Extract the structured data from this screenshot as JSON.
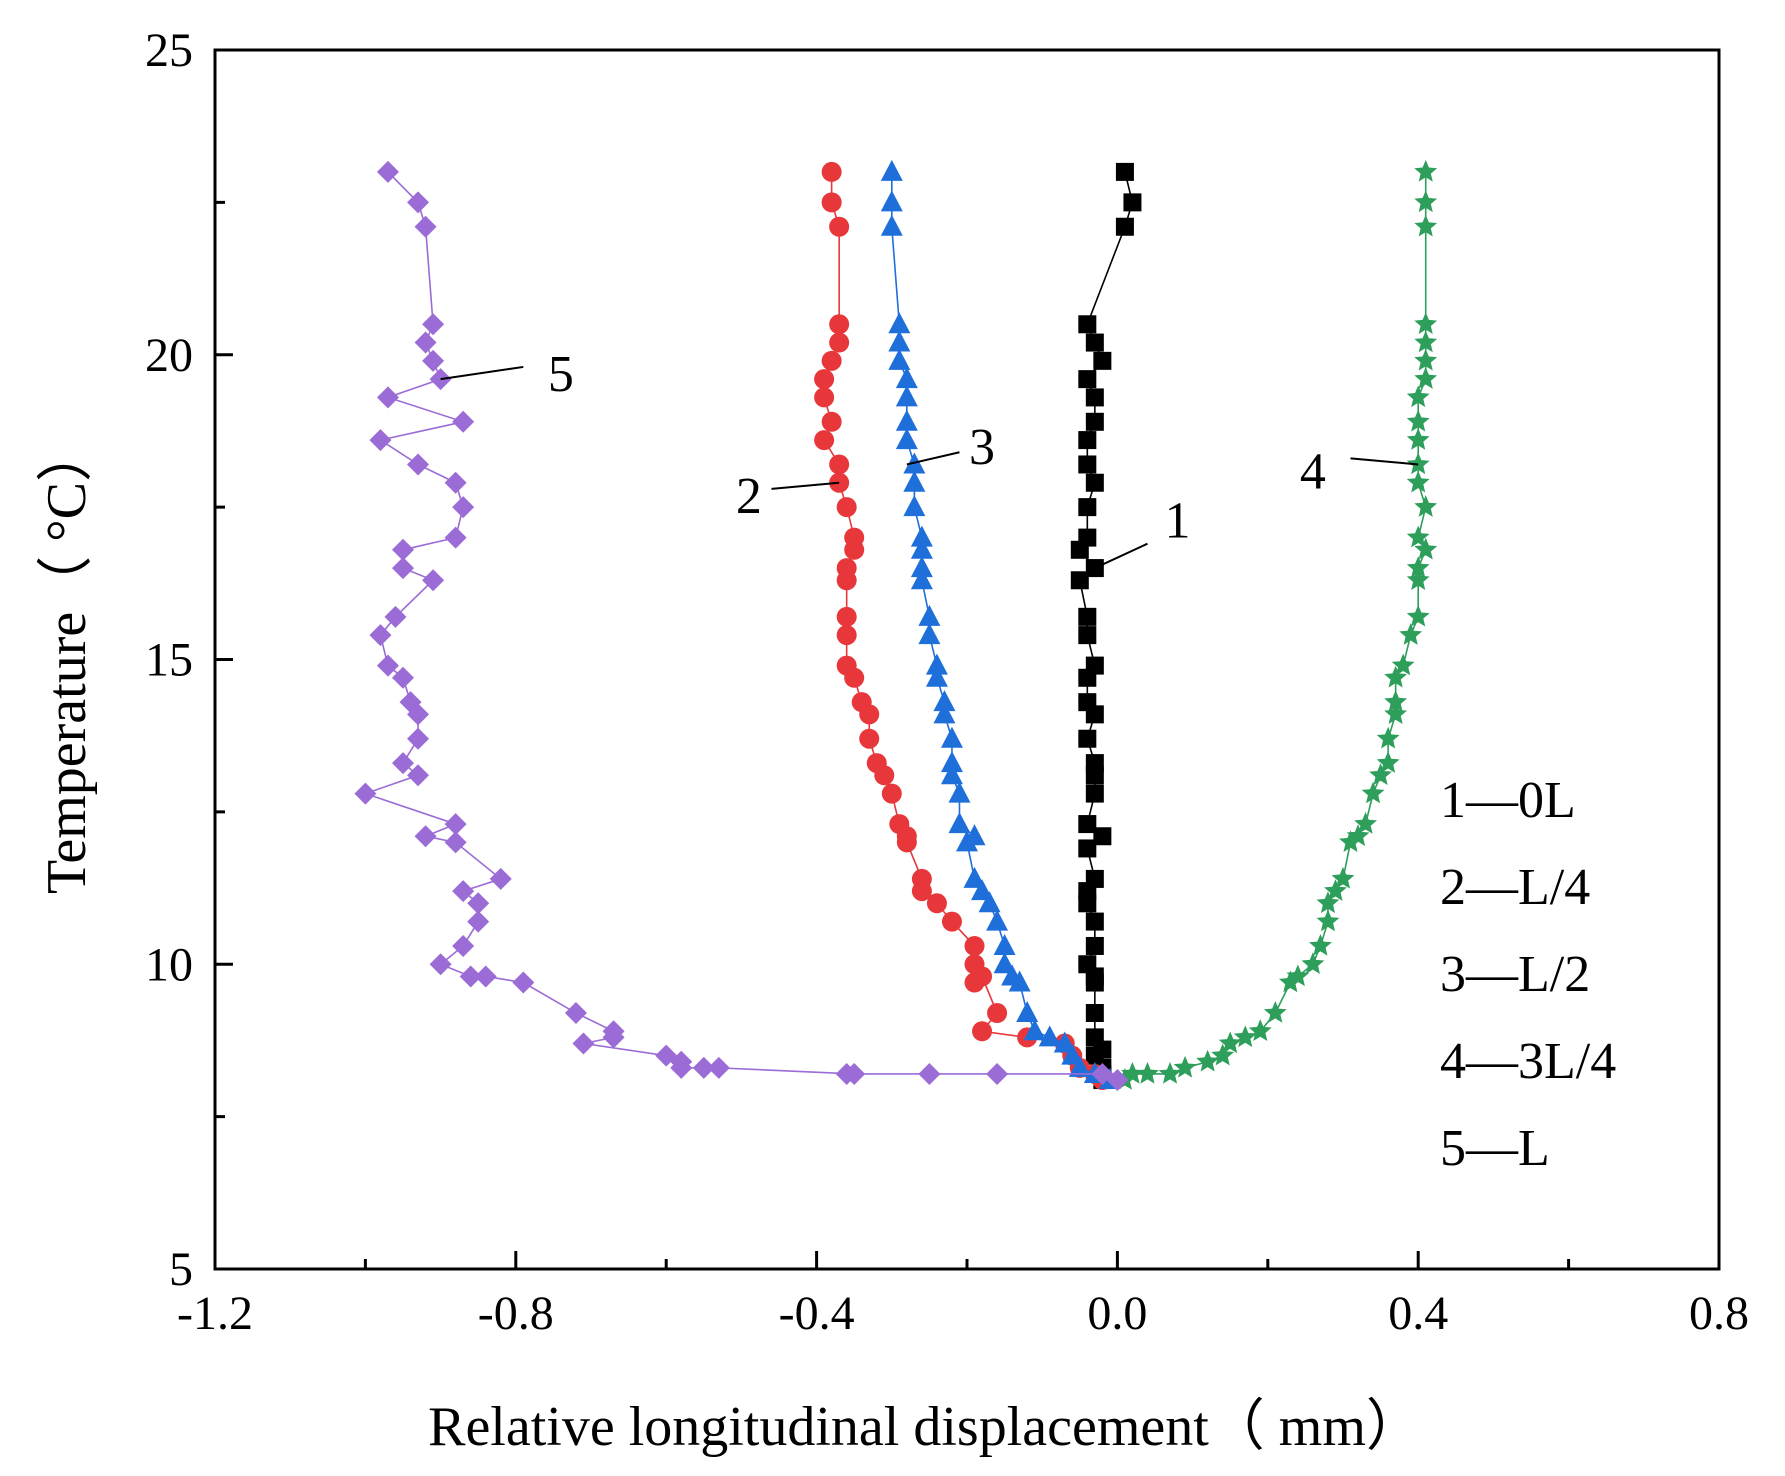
{
  "chart_data": {
    "type": "scatter",
    "title": "",
    "xlabel": "Relative longitudinal displacement（ mm）",
    "ylabel": "Temperature（ °C）",
    "xlim": [
      -1.2,
      0.8
    ],
    "ylim": [
      5,
      25
    ],
    "x_ticks": [
      -1.2,
      -0.8,
      -0.4,
      0.0,
      0.4,
      0.8
    ],
    "x_tick_labels": [
      "-1.2",
      "-0.8",
      "-0.4",
      "0.0",
      "0.4",
      "0.8"
    ],
    "y_ticks": [
      5,
      10,
      15,
      20,
      25
    ],
    "y_tick_labels": [
      "5",
      "10",
      "15",
      "20",
      "25"
    ],
    "grid": false,
    "legend": {
      "placement": "right",
      "entries": [
        "1—0L",
        "2—L/4",
        "3—L/2",
        "4—3L/4",
        "5—L"
      ]
    },
    "series": [
      {
        "name": "1",
        "marker": "square",
        "color": "#000000",
        "points": [
          [
            0.01,
            23.0
          ],
          [
            0.02,
            22.5
          ],
          [
            0.01,
            22.1
          ],
          [
            -0.04,
            20.5
          ],
          [
            -0.03,
            20.2
          ],
          [
            -0.02,
            19.9
          ],
          [
            -0.04,
            19.6
          ],
          [
            -0.03,
            19.3
          ],
          [
            -0.03,
            18.9
          ],
          [
            -0.04,
            18.6
          ],
          [
            -0.04,
            18.2
          ],
          [
            -0.03,
            17.9
          ],
          [
            -0.04,
            17.5
          ],
          [
            -0.04,
            17.0
          ],
          [
            -0.05,
            16.8
          ],
          [
            -0.03,
            16.5
          ],
          [
            -0.05,
            16.3
          ],
          [
            -0.04,
            15.7
          ],
          [
            -0.04,
            15.4
          ],
          [
            -0.03,
            14.9
          ],
          [
            -0.04,
            14.7
          ],
          [
            -0.04,
            14.3
          ],
          [
            -0.03,
            14.1
          ],
          [
            -0.04,
            13.7
          ],
          [
            -0.03,
            13.3
          ],
          [
            -0.03,
            13.1
          ],
          [
            -0.03,
            12.8
          ],
          [
            -0.04,
            12.3
          ],
          [
            -0.02,
            12.1
          ],
          [
            -0.04,
            11.9
          ],
          [
            -0.03,
            11.4
          ],
          [
            -0.04,
            11.2
          ],
          [
            -0.04,
            11.0
          ],
          [
            -0.03,
            10.7
          ],
          [
            -0.03,
            10.3
          ],
          [
            -0.04,
            10.0
          ],
          [
            -0.03,
            9.8
          ],
          [
            -0.03,
            9.7
          ],
          [
            -0.03,
            9.2
          ],
          [
            -0.03,
            8.8
          ],
          [
            -0.02,
            8.6
          ],
          [
            -0.03,
            8.5
          ],
          [
            -0.02,
            8.3
          ],
          [
            -0.02,
            8.2
          ],
          [
            -0.02,
            8.1
          ]
        ]
      },
      {
        "name": "2",
        "marker": "circle",
        "color": "#e8373a",
        "points": [
          [
            -0.38,
            23.0
          ],
          [
            -0.38,
            22.5
          ],
          [
            -0.37,
            22.1
          ],
          [
            -0.37,
            20.5
          ],
          [
            -0.37,
            20.2
          ],
          [
            -0.38,
            19.9
          ],
          [
            -0.39,
            19.6
          ],
          [
            -0.39,
            19.3
          ],
          [
            -0.38,
            18.9
          ],
          [
            -0.39,
            18.6
          ],
          [
            -0.37,
            18.2
          ],
          [
            -0.37,
            17.9
          ],
          [
            -0.36,
            17.5
          ],
          [
            -0.35,
            17.0
          ],
          [
            -0.35,
            16.8
          ],
          [
            -0.36,
            16.5
          ],
          [
            -0.36,
            16.3
          ],
          [
            -0.36,
            15.7
          ],
          [
            -0.36,
            15.4
          ],
          [
            -0.36,
            14.9
          ],
          [
            -0.35,
            14.7
          ],
          [
            -0.34,
            14.3
          ],
          [
            -0.33,
            14.1
          ],
          [
            -0.33,
            13.7
          ],
          [
            -0.32,
            13.3
          ],
          [
            -0.31,
            13.1
          ],
          [
            -0.3,
            12.8
          ],
          [
            -0.29,
            12.3
          ],
          [
            -0.28,
            12.1
          ],
          [
            -0.28,
            12.0
          ],
          [
            -0.26,
            11.4
          ],
          [
            -0.26,
            11.2
          ],
          [
            -0.24,
            11.0
          ],
          [
            -0.22,
            10.7
          ],
          [
            -0.19,
            10.3
          ],
          [
            -0.19,
            10.0
          ],
          [
            -0.19,
            9.7
          ],
          [
            -0.18,
            9.8
          ],
          [
            -0.16,
            9.2
          ],
          [
            -0.18,
            8.9
          ],
          [
            -0.12,
            8.8
          ],
          [
            -0.07,
            8.7
          ],
          [
            -0.06,
            8.5
          ],
          [
            -0.05,
            8.3
          ],
          [
            -0.03,
            8.2
          ],
          [
            -0.02,
            8.1
          ]
        ]
      },
      {
        "name": "3",
        "marker": "triangle",
        "color": "#1f6fdb",
        "points": [
          [
            -0.3,
            23.0
          ],
          [
            -0.3,
            22.5
          ],
          [
            -0.3,
            22.1
          ],
          [
            -0.29,
            20.5
          ],
          [
            -0.29,
            20.2
          ],
          [
            -0.29,
            19.9
          ],
          [
            -0.28,
            19.6
          ],
          [
            -0.28,
            19.3
          ],
          [
            -0.28,
            18.9
          ],
          [
            -0.28,
            18.6
          ],
          [
            -0.27,
            18.2
          ],
          [
            -0.27,
            17.9
          ],
          [
            -0.27,
            17.5
          ],
          [
            -0.26,
            17.0
          ],
          [
            -0.26,
            16.8
          ],
          [
            -0.26,
            16.5
          ],
          [
            -0.26,
            16.3
          ],
          [
            -0.25,
            15.7
          ],
          [
            -0.25,
            15.4
          ],
          [
            -0.24,
            14.9
          ],
          [
            -0.24,
            14.7
          ],
          [
            -0.23,
            14.3
          ],
          [
            -0.23,
            14.1
          ],
          [
            -0.22,
            13.7
          ],
          [
            -0.22,
            13.3
          ],
          [
            -0.22,
            13.1
          ],
          [
            -0.21,
            12.8
          ],
          [
            -0.21,
            12.3
          ],
          [
            -0.19,
            12.1
          ],
          [
            -0.2,
            12.0
          ],
          [
            -0.19,
            11.4
          ],
          [
            -0.18,
            11.2
          ],
          [
            -0.17,
            11.0
          ],
          [
            -0.16,
            10.7
          ],
          [
            -0.15,
            10.3
          ],
          [
            -0.15,
            10.0
          ],
          [
            -0.14,
            9.8
          ],
          [
            -0.13,
            9.7
          ],
          [
            -0.12,
            9.2
          ],
          [
            -0.11,
            8.9
          ],
          [
            -0.09,
            8.8
          ],
          [
            -0.07,
            8.7
          ],
          [
            -0.06,
            8.5
          ],
          [
            -0.05,
            8.3
          ],
          [
            -0.03,
            8.2
          ],
          [
            -0.01,
            8.1
          ]
        ]
      },
      {
        "name": "4",
        "marker": "star",
        "color": "#2e9e5b",
        "points": [
          [
            0.41,
            23.0
          ],
          [
            0.41,
            22.5
          ],
          [
            0.41,
            22.1
          ],
          [
            0.41,
            20.5
          ],
          [
            0.41,
            20.2
          ],
          [
            0.41,
            19.9
          ],
          [
            0.41,
            19.6
          ],
          [
            0.4,
            19.3
          ],
          [
            0.4,
            18.9
          ],
          [
            0.4,
            18.6
          ],
          [
            0.4,
            18.2
          ],
          [
            0.4,
            17.9
          ],
          [
            0.41,
            17.5
          ],
          [
            0.4,
            17.0
          ],
          [
            0.41,
            16.8
          ],
          [
            0.4,
            16.5
          ],
          [
            0.4,
            16.3
          ],
          [
            0.4,
            15.7
          ],
          [
            0.39,
            15.4
          ],
          [
            0.38,
            14.9
          ],
          [
            0.37,
            14.7
          ],
          [
            0.37,
            14.3
          ],
          [
            0.37,
            14.1
          ],
          [
            0.36,
            13.7
          ],
          [
            0.36,
            13.3
          ],
          [
            0.35,
            13.1
          ],
          [
            0.34,
            12.8
          ],
          [
            0.33,
            12.3
          ],
          [
            0.32,
            12.1
          ],
          [
            0.31,
            12.0
          ],
          [
            0.3,
            11.4
          ],
          [
            0.29,
            11.2
          ],
          [
            0.28,
            11.0
          ],
          [
            0.28,
            10.7
          ],
          [
            0.27,
            10.3
          ],
          [
            0.26,
            10.0
          ],
          [
            0.24,
            9.8
          ],
          [
            0.23,
            9.7
          ],
          [
            0.21,
            9.2
          ],
          [
            0.19,
            8.9
          ],
          [
            0.17,
            8.8
          ],
          [
            0.15,
            8.7
          ],
          [
            0.14,
            8.5
          ],
          [
            0.12,
            8.4
          ],
          [
            0.09,
            8.3
          ],
          [
            0.07,
            8.2
          ],
          [
            0.04,
            8.2
          ],
          [
            0.02,
            8.2
          ],
          [
            0.01,
            8.1
          ]
        ]
      },
      {
        "name": "5",
        "marker": "diamond",
        "color": "#9b6bd6",
        "points": [
          [
            -0.97,
            23.0
          ],
          [
            -0.93,
            22.5
          ],
          [
            -0.92,
            22.1
          ],
          [
            -0.91,
            20.5
          ],
          [
            -0.92,
            20.2
          ],
          [
            -0.91,
            19.9
          ],
          [
            -0.9,
            19.6
          ],
          [
            -0.97,
            19.3
          ],
          [
            -0.87,
            18.9
          ],
          [
            -0.98,
            18.6
          ],
          [
            -0.93,
            18.2
          ],
          [
            -0.88,
            17.9
          ],
          [
            -0.87,
            17.5
          ],
          [
            -0.88,
            17.0
          ],
          [
            -0.95,
            16.8
          ],
          [
            -0.95,
            16.5
          ],
          [
            -0.91,
            16.3
          ],
          [
            -0.96,
            15.7
          ],
          [
            -0.98,
            15.4
          ],
          [
            -0.97,
            14.9
          ],
          [
            -0.95,
            14.7
          ],
          [
            -0.94,
            14.3
          ],
          [
            -0.93,
            14.1
          ],
          [
            -0.93,
            13.7
          ],
          [
            -0.95,
            13.3
          ],
          [
            -0.93,
            13.1
          ],
          [
            -1.0,
            12.8
          ],
          [
            -0.88,
            12.3
          ],
          [
            -0.92,
            12.1
          ],
          [
            -0.88,
            12.0
          ],
          [
            -0.82,
            11.4
          ],
          [
            -0.87,
            11.2
          ],
          [
            -0.85,
            11.0
          ],
          [
            -0.85,
            10.7
          ],
          [
            -0.87,
            10.3
          ],
          [
            -0.9,
            10.0
          ],
          [
            -0.86,
            9.8
          ],
          [
            -0.84,
            9.8
          ],
          [
            -0.79,
            9.7
          ],
          [
            -0.72,
            9.2
          ],
          [
            -0.67,
            8.9
          ],
          [
            -0.67,
            8.8
          ],
          [
            -0.71,
            8.7
          ],
          [
            -0.6,
            8.5
          ],
          [
            -0.58,
            8.4
          ],
          [
            -0.58,
            8.3
          ],
          [
            -0.55,
            8.3
          ],
          [
            -0.53,
            8.3
          ],
          [
            -0.35,
            8.2
          ],
          [
            -0.36,
            8.2
          ],
          [
            -0.25,
            8.2
          ],
          [
            -0.16,
            8.2
          ],
          [
            -0.02,
            8.2
          ],
          [
            0.0,
            8.1
          ]
        ]
      }
    ],
    "annotations": [
      {
        "text": "1",
        "from": [
          -0.03,
          16.5
        ],
        "to": [
          0.04,
          16.9
        ],
        "label_at": [
          0.08,
          17.3
        ]
      },
      {
        "text": "2",
        "from": [
          -0.37,
          17.9
        ],
        "to": [
          -0.46,
          17.8
        ],
        "label_at": [
          -0.49,
          17.7
        ]
      },
      {
        "text": "3",
        "from": [
          -0.28,
          18.2
        ],
        "to": [
          -0.21,
          18.4
        ],
        "label_at": [
          -0.18,
          18.5
        ]
      },
      {
        "text": "4",
        "from": [
          0.4,
          18.2
        ],
        "to": [
          0.31,
          18.3
        ],
        "label_at": [
          0.26,
          18.1
        ]
      },
      {
        "text": "5",
        "from": [
          -0.9,
          19.6
        ],
        "to": [
          -0.79,
          19.8
        ],
        "label_at": [
          -0.74,
          19.7
        ]
      }
    ]
  }
}
